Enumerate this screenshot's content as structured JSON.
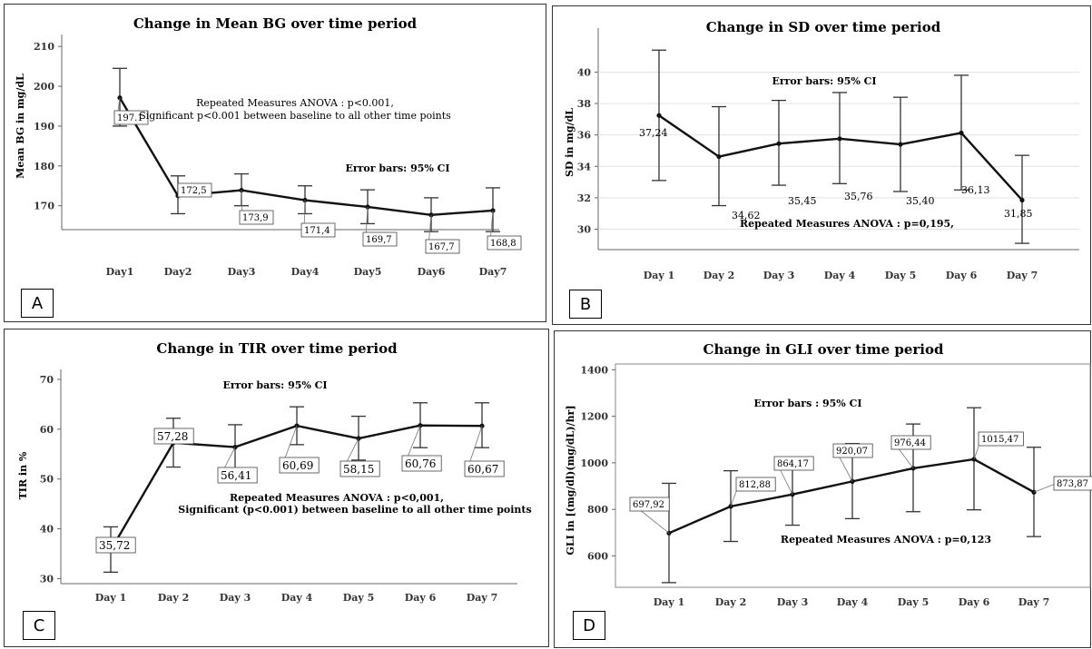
{
  "chart_data": [
    {
      "type": "line",
      "panel_letter": "A",
      "title": "Change in Mean BG over time period",
      "ylabel": "Mean BG in mg/dL",
      "xlabel": "",
      "categories": [
        "Day1",
        "Day2",
        "Day3",
        "Day4",
        "Day5",
        "Day6",
        "Day7"
      ],
      "values": [
        197.1,
        172.5,
        173.9,
        171.4,
        169.7,
        167.7,
        168.8
      ],
      "value_labels": [
        "197.1",
        "172,5",
        "173,9",
        "171,4",
        "169,7",
        "167,7",
        "168,8"
      ],
      "ci_lower": [
        190.0,
        168.0,
        170.0,
        168.0,
        165.5,
        163.5,
        163.5
      ],
      "ci_upper": [
        204.5,
        177.5,
        178.0,
        175.0,
        174.0,
        172.0,
        174.5
      ],
      "ylim": [
        164,
        213
      ],
      "yticks": [
        "210",
        "200",
        "190",
        "180",
        "170"
      ],
      "ytick_values": [
        210,
        200,
        190,
        180,
        170
      ],
      "annotations": [
        "Repeated Measures ANOVA : p<0.001,",
        "Significant p<0.001 between baseline to all other time points",
        "Error bars: 95% CI"
      ],
      "grid": false
    },
    {
      "type": "line",
      "panel_letter": "B",
      "title": "Change in SD over time period",
      "ylabel": "SD in mg/dL",
      "xlabel": "",
      "categories": [
        "Day 1",
        "Day 2",
        "Day 3",
        "Day 4",
        "Day 5",
        "Day 6",
        "Day 7"
      ],
      "values": [
        37.24,
        34.62,
        35.45,
        35.76,
        35.4,
        36.13,
        31.85
      ],
      "value_labels": [
        "37,24",
        "34,62",
        "35,45",
        "35,76",
        "35,40",
        "36,13",
        "31,85"
      ],
      "ci_lower": [
        33.1,
        31.5,
        32.8,
        32.9,
        32.4,
        32.5,
        29.1
      ],
      "ci_upper": [
        41.4,
        37.8,
        38.2,
        38.7,
        38.4,
        39.8,
        34.7
      ],
      "ylim": [
        28.7,
        42.8
      ],
      "yticks": [
        "40",
        "38",
        "36",
        "34",
        "32",
        "30"
      ],
      "ytick_values": [
        40,
        38,
        36,
        34,
        32,
        30
      ],
      "annotations": [
        "Error bars: 95% CI",
        "Repeated Measures ANOVA : p=0,195,"
      ],
      "grid": true
    },
    {
      "type": "line",
      "panel_letter": "C",
      "title": "Change in TIR over time period",
      "ylabel": "TIR in %",
      "xlabel": "",
      "categories": [
        "Day 1",
        "Day 2",
        "Day 3",
        "Day 4",
        "Day 5",
        "Day 6",
        "Day 7"
      ],
      "values": [
        35.72,
        57.28,
        56.41,
        60.69,
        58.15,
        60.76,
        60.67
      ],
      "value_labels": [
        "35,72",
        "57,28",
        "56,41",
        "60,69",
        "58,15",
        "60,76",
        "60,67"
      ],
      "ci_lower": [
        31.3,
        52.4,
        52.1,
        56.9,
        53.8,
        56.3,
        56.3
      ],
      "ci_upper": [
        40.4,
        62.2,
        60.9,
        64.5,
        62.6,
        65.3,
        65.3
      ],
      "ylim": [
        29,
        72
      ],
      "yticks": [
        "70",
        "60",
        "50",
        "40",
        "30"
      ],
      "ytick_values": [
        70,
        60,
        50,
        40,
        30
      ],
      "annotations": [
        "Error bars: 95% CI",
        "Repeated Measures ANOVA : p<0,001,",
        "Significant (p<0.001) between baseline to all other time points"
      ],
      "grid": false
    },
    {
      "type": "line",
      "panel_letter": "D",
      "title": "Change in GLI over time period",
      "ylabel": "GLI in [(mg/dl)(mg/dL)/hr]",
      "xlabel": "",
      "categories": [
        "Day 1",
        "Day 2",
        "Day 3",
        "Day 4",
        "Day 5",
        "Day 6",
        "Day 7"
      ],
      "values": [
        697.92,
        812.88,
        864.17,
        920.07,
        976.44,
        1015.47,
        873.87
      ],
      "value_labels": [
        "697,92",
        "812,88",
        "864,17",
        "920,07",
        "976,44",
        "1015,47",
        "873,87"
      ],
      "ci_lower": [
        485,
        662,
        732,
        760,
        790,
        798,
        683
      ],
      "ci_upper": [
        912,
        966,
        998,
        1083,
        1167,
        1237,
        1067
      ],
      "ylim": [
        465,
        1425
      ],
      "yticks": [
        "1400",
        "1200",
        "1000",
        "800",
        "600"
      ],
      "ytick_values": [
        1400,
        1200,
        1000,
        800,
        600
      ],
      "annotations": [
        "Error bars : 95% CI",
        "Repeated Measures ANOVA : p=0,123"
      ],
      "grid": false
    }
  ]
}
